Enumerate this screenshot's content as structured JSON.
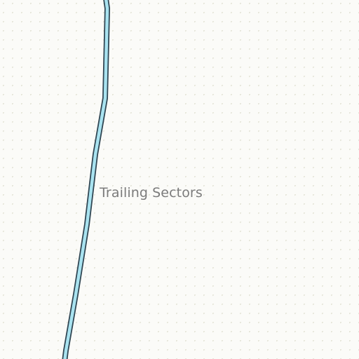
{
  "map": {
    "background_color": "#fbfbf8",
    "dot_pattern_color": "#e6e6da",
    "trail": {
      "casing_color": "#2f4552",
      "fill_color": "#a9e3f0"
    },
    "labels": {
      "area_name": "Trailing Sectors"
    }
  }
}
